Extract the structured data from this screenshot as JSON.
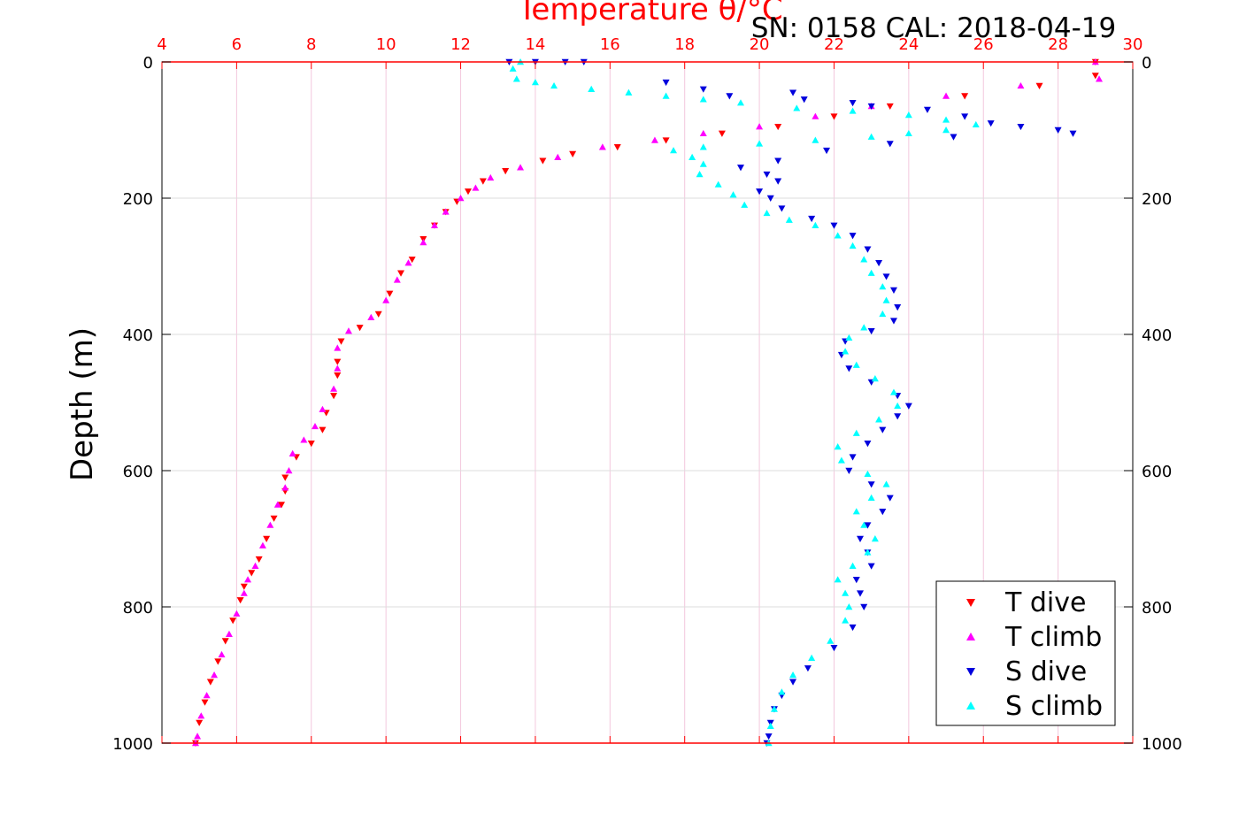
{
  "header": {
    "title": "Temperature θ/°C",
    "serial": "SN: 0158  CAL: 2018-04-19"
  },
  "chart_data": {
    "type": "scatter",
    "ylabel": "Depth (m)",
    "xlabel_top": "Temperature θ/°C",
    "xlim": [
      4,
      30
    ],
    "ylim": [
      0,
      1000
    ],
    "y_reversed": true,
    "x_ticks": [
      "4",
      "6",
      "8",
      "10",
      "12",
      "14",
      "16",
      "18",
      "20",
      "22",
      "24",
      "26",
      "28",
      "30"
    ],
    "y_ticks": [
      "0",
      "200",
      "400",
      "600",
      "800",
      "1000"
    ],
    "grid": true,
    "legend_position": "bottom-right",
    "colors": {
      "t_dive": "#ff0000",
      "t_climb": "#ff00ff",
      "s_dive": "#0000dd",
      "s_climb": "#00ffff",
      "axis": "#ff0000"
    },
    "series": [
      {
        "name": "T dive",
        "marker": "triangle-down",
        "color": "#ff0000",
        "points": [
          [
            29.0,
            0
          ],
          [
            29.0,
            20
          ],
          [
            27.5,
            35
          ],
          [
            25.5,
            50
          ],
          [
            23.5,
            65
          ],
          [
            22.0,
            80
          ],
          [
            20.5,
            95
          ],
          [
            19.0,
            105
          ],
          [
            17.5,
            115
          ],
          [
            16.2,
            125
          ],
          [
            15.0,
            135
          ],
          [
            14.2,
            145
          ],
          [
            13.2,
            160
          ],
          [
            12.6,
            175
          ],
          [
            12.2,
            190
          ],
          [
            11.9,
            205
          ],
          [
            11.6,
            220
          ],
          [
            11.3,
            240
          ],
          [
            11.0,
            260
          ],
          [
            10.7,
            290
          ],
          [
            10.4,
            310
          ],
          [
            10.1,
            340
          ],
          [
            9.8,
            370
          ],
          [
            9.3,
            390
          ],
          [
            8.8,
            410
          ],
          [
            8.7,
            440
          ],
          [
            8.7,
            460
          ],
          [
            8.6,
            490
          ],
          [
            8.4,
            515
          ],
          [
            8.3,
            540
          ],
          [
            8.0,
            560
          ],
          [
            7.6,
            580
          ],
          [
            7.3,
            610
          ],
          [
            7.3,
            630
          ],
          [
            7.2,
            650
          ],
          [
            7.0,
            670
          ],
          [
            6.8,
            700
          ],
          [
            6.6,
            730
          ],
          [
            6.4,
            750
          ],
          [
            6.2,
            770
          ],
          [
            6.1,
            790
          ],
          [
            5.9,
            820
          ],
          [
            5.7,
            850
          ],
          [
            5.5,
            880
          ],
          [
            5.3,
            910
          ],
          [
            5.15,
            940
          ],
          [
            5.0,
            970
          ],
          [
            4.9,
            1000
          ]
        ]
      },
      {
        "name": "T climb",
        "marker": "triangle-up",
        "color": "#ff00ff",
        "points": [
          [
            29.0,
            0
          ],
          [
            29.1,
            25
          ],
          [
            27.0,
            35
          ],
          [
            25.0,
            50
          ],
          [
            23.0,
            65
          ],
          [
            21.5,
            80
          ],
          [
            20.0,
            95
          ],
          [
            18.5,
            105
          ],
          [
            17.2,
            115
          ],
          [
            15.8,
            125
          ],
          [
            14.6,
            140
          ],
          [
            13.6,
            155
          ],
          [
            12.8,
            170
          ],
          [
            12.4,
            185
          ],
          [
            12.0,
            200
          ],
          [
            11.6,
            220
          ],
          [
            11.3,
            240
          ],
          [
            11.0,
            265
          ],
          [
            10.6,
            295
          ],
          [
            10.3,
            320
          ],
          [
            10.0,
            350
          ],
          [
            9.6,
            375
          ],
          [
            9.0,
            395
          ],
          [
            8.7,
            420
          ],
          [
            8.7,
            450
          ],
          [
            8.6,
            480
          ],
          [
            8.3,
            510
          ],
          [
            8.1,
            535
          ],
          [
            7.8,
            555
          ],
          [
            7.5,
            575
          ],
          [
            7.4,
            600
          ],
          [
            7.3,
            625
          ],
          [
            7.1,
            650
          ],
          [
            6.9,
            680
          ],
          [
            6.7,
            710
          ],
          [
            6.5,
            740
          ],
          [
            6.3,
            760
          ],
          [
            6.2,
            780
          ],
          [
            6.0,
            810
          ],
          [
            5.8,
            840
          ],
          [
            5.6,
            870
          ],
          [
            5.4,
            900
          ],
          [
            5.2,
            930
          ],
          [
            5.05,
            960
          ],
          [
            4.95,
            990
          ],
          [
            4.9,
            1000
          ]
        ]
      },
      {
        "name": "S dive",
        "marker": "triangle-down",
        "color": "#0000dd",
        "points": [
          [
            13.3,
            0
          ],
          [
            14.0,
            0
          ],
          [
            14.8,
            0
          ],
          [
            15.3,
            0
          ],
          [
            17.5,
            30
          ],
          [
            18.5,
            40
          ],
          [
            19.2,
            50
          ],
          [
            20.9,
            45
          ],
          [
            21.2,
            55
          ],
          [
            22.5,
            60
          ],
          [
            23.0,
            65
          ],
          [
            24.5,
            70
          ],
          [
            25.5,
            80
          ],
          [
            26.2,
            90
          ],
          [
            27.0,
            95
          ],
          [
            28.0,
            100
          ],
          [
            28.4,
            105
          ],
          [
            25.2,
            110
          ],
          [
            23.5,
            120
          ],
          [
            21.8,
            130
          ],
          [
            20.5,
            145
          ],
          [
            19.5,
            155
          ],
          [
            20.2,
            165
          ],
          [
            20.5,
            175
          ],
          [
            20.0,
            190
          ],
          [
            20.3,
            200
          ],
          [
            20.6,
            215
          ],
          [
            21.4,
            230
          ],
          [
            22.0,
            240
          ],
          [
            22.5,
            255
          ],
          [
            22.9,
            275
          ],
          [
            23.2,
            295
          ],
          [
            23.4,
            315
          ],
          [
            23.6,
            335
          ],
          [
            23.7,
            360
          ],
          [
            23.6,
            380
          ],
          [
            23.0,
            395
          ],
          [
            22.3,
            410
          ],
          [
            22.2,
            430
          ],
          [
            22.4,
            450
          ],
          [
            23.0,
            470
          ],
          [
            23.7,
            490
          ],
          [
            24.0,
            505
          ],
          [
            23.7,
            520
          ],
          [
            23.3,
            540
          ],
          [
            22.9,
            560
          ],
          [
            22.5,
            580
          ],
          [
            22.4,
            600
          ],
          [
            23.0,
            620
          ],
          [
            23.5,
            640
          ],
          [
            23.3,
            660
          ],
          [
            22.9,
            680
          ],
          [
            22.7,
            700
          ],
          [
            22.9,
            720
          ],
          [
            23.0,
            740
          ],
          [
            22.6,
            760
          ],
          [
            22.7,
            780
          ],
          [
            22.8,
            800
          ],
          [
            22.5,
            830
          ],
          [
            22.0,
            860
          ],
          [
            21.3,
            890
          ],
          [
            20.9,
            910
          ],
          [
            20.6,
            930
          ],
          [
            20.4,
            950
          ],
          [
            20.3,
            970
          ],
          [
            20.25,
            990
          ],
          [
            20.2,
            1000
          ]
        ]
      },
      {
        "name": "S climb",
        "marker": "triangle-up",
        "color": "#00ffff",
        "points": [
          [
            13.6,
            0
          ],
          [
            13.4,
            10
          ],
          [
            13.5,
            25
          ],
          [
            14.0,
            30
          ],
          [
            14.5,
            35
          ],
          [
            15.5,
            40
          ],
          [
            16.5,
            45
          ],
          [
            17.5,
            50
          ],
          [
            18.5,
            55
          ],
          [
            19.5,
            60
          ],
          [
            21.0,
            68
          ],
          [
            22.5,
            72
          ],
          [
            24.0,
            78
          ],
          [
            25.0,
            85
          ],
          [
            25.8,
            92
          ],
          [
            25.0,
            100
          ],
          [
            24.0,
            105
          ],
          [
            23.0,
            110
          ],
          [
            21.5,
            115
          ],
          [
            20.0,
            120
          ],
          [
            18.5,
            125
          ],
          [
            17.7,
            130
          ],
          [
            18.2,
            140
          ],
          [
            18.5,
            150
          ],
          [
            18.4,
            165
          ],
          [
            18.9,
            180
          ],
          [
            19.3,
            195
          ],
          [
            19.6,
            210
          ],
          [
            20.2,
            222
          ],
          [
            20.8,
            232
          ],
          [
            21.5,
            240
          ],
          [
            22.1,
            255
          ],
          [
            22.5,
            270
          ],
          [
            22.8,
            290
          ],
          [
            23.0,
            310
          ],
          [
            23.3,
            330
          ],
          [
            23.4,
            350
          ],
          [
            23.3,
            370
          ],
          [
            22.8,
            390
          ],
          [
            22.4,
            405
          ],
          [
            22.3,
            425
          ],
          [
            22.6,
            445
          ],
          [
            23.1,
            465
          ],
          [
            23.6,
            485
          ],
          [
            23.7,
            505
          ],
          [
            23.2,
            525
          ],
          [
            22.6,
            545
          ],
          [
            22.1,
            565
          ],
          [
            22.2,
            585
          ],
          [
            22.9,
            605
          ],
          [
            23.4,
            620
          ],
          [
            23.0,
            640
          ],
          [
            22.6,
            660
          ],
          [
            22.8,
            680
          ],
          [
            23.1,
            700
          ],
          [
            22.9,
            720
          ],
          [
            22.5,
            740
          ],
          [
            22.1,
            760
          ],
          [
            22.3,
            780
          ],
          [
            22.4,
            800
          ],
          [
            22.3,
            820
          ],
          [
            21.9,
            850
          ],
          [
            21.4,
            875
          ],
          [
            20.9,
            900
          ],
          [
            20.6,
            925
          ],
          [
            20.4,
            950
          ],
          [
            20.3,
            975
          ],
          [
            20.25,
            1000
          ]
        ]
      }
    ]
  }
}
